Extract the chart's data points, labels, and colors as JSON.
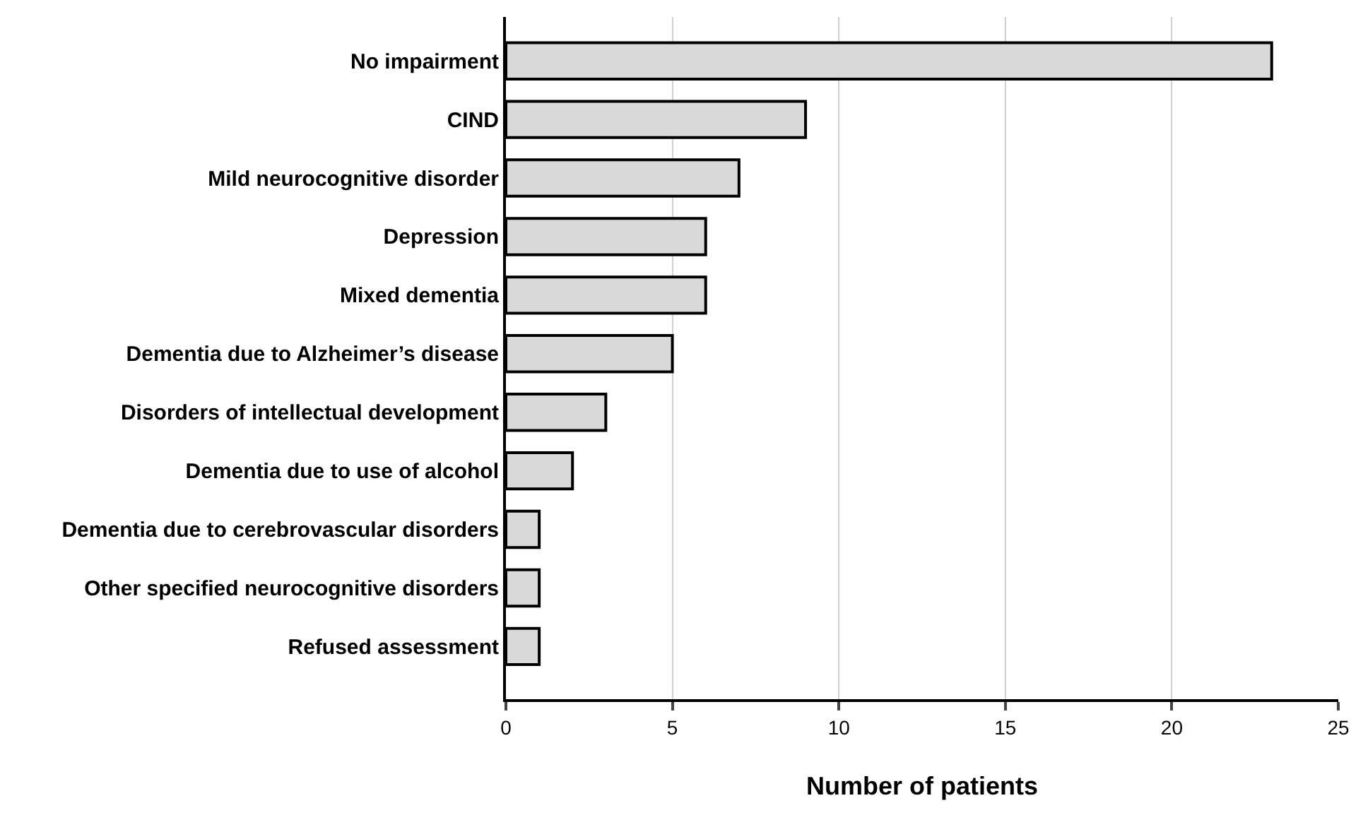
{
  "chart_data": {
    "type": "bar",
    "orientation": "horizontal",
    "xlabel": "Number of patients",
    "categories": [
      "No impairment",
      "CIND",
      "Mild neurocognitive disorder",
      "Depression",
      "Mixed dementia",
      "Dementia due to Alzheimer’s disease",
      "Disorders of intellectual development",
      "Dementia due to use of alcohol",
      "Dementia due to cerebrovascular disorders",
      "Other specified neurocognitive disorders",
      "Refused assessment"
    ],
    "values": [
      23,
      9,
      7,
      6,
      6,
      5,
      3,
      2,
      1,
      1,
      1
    ],
    "color": "#d9d9d9",
    "xlim": [
      0,
      25
    ],
    "xticks": [
      0,
      5,
      10,
      15,
      20,
      25
    ],
    "grid": "x"
  }
}
